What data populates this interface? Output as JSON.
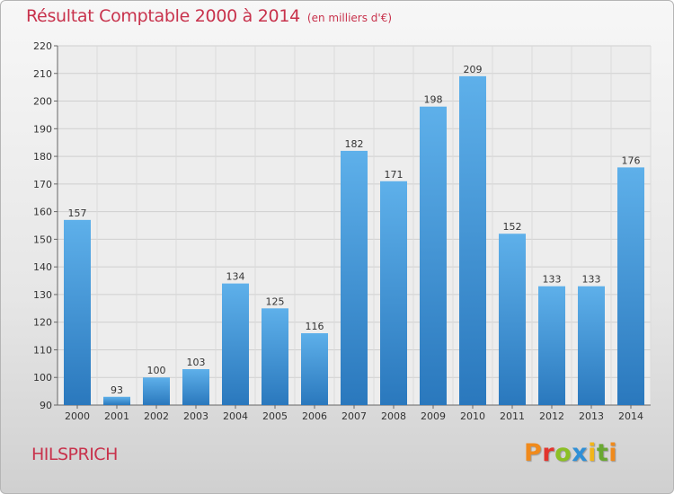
{
  "title": "Résultat Comptable 2000 à 2014",
  "subtitle": "(en milliers d'€)",
  "commune": "HILSPRICH",
  "logo": {
    "letters": [
      "P",
      "r",
      "o",
      "x",
      "i",
      "t",
      "i"
    ]
  },
  "colors": {
    "title": "#c8324c",
    "bar_light": "#5eb0ea",
    "bar_dark": "#2a78bd",
    "grid": "#cfcfcf"
  },
  "chart_data": {
    "type": "bar",
    "categories": [
      "2000",
      "2001",
      "2002",
      "2003",
      "2004",
      "2005",
      "2006",
      "2007",
      "2008",
      "2009",
      "2010",
      "2011",
      "2012",
      "2013",
      "2014"
    ],
    "values": [
      157,
      93,
      100,
      103,
      134,
      125,
      116,
      182,
      171,
      198,
      209,
      152,
      133,
      133,
      176
    ],
    "ylim": [
      90,
      220
    ],
    "yticks": [
      90,
      100,
      110,
      120,
      130,
      140,
      150,
      160,
      170,
      180,
      190,
      200,
      210,
      220
    ],
    "grid": true,
    "data_labels": true
  }
}
